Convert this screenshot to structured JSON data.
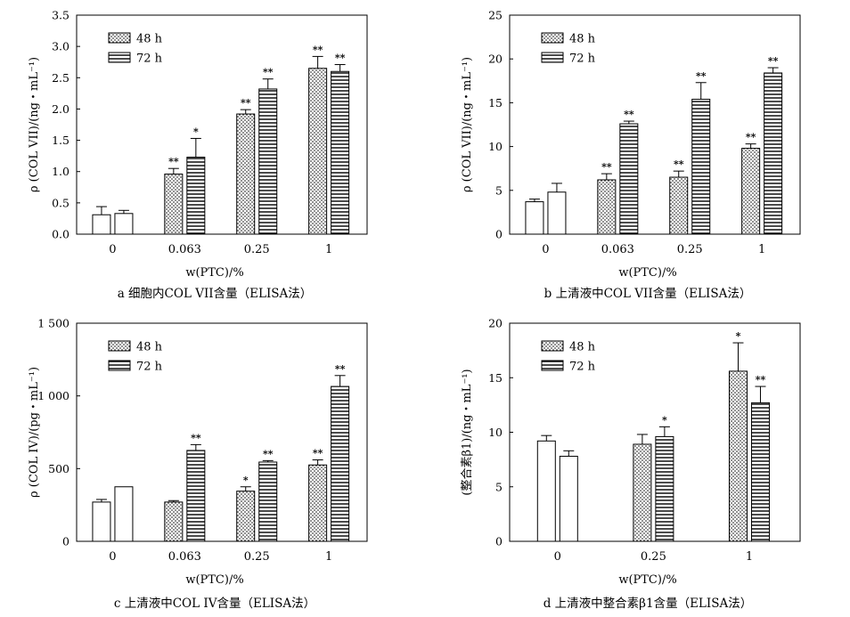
{
  "chart_data": [
    {
      "type": "bar",
      "panel": "a",
      "caption": "a 细胞内COL VII含量（ELISA法）",
      "xlabel": "w(PTC)/%",
      "ylabel": "ρ (COL VII)/(ng・mL⁻¹)",
      "ylim": [
        0,
        3.5
      ],
      "yticks": [
        "0.0",
        "0.5",
        "1.0",
        "1.5",
        "2.0",
        "2.5",
        "3.0",
        "3.5"
      ],
      "categories": [
        "0",
        "0.063",
        "0.25",
        "1"
      ],
      "series": [
        {
          "name": "48 h",
          "values": [
            0.31,
            0.96,
            1.92,
            2.65
          ],
          "errors": [
            0.13,
            0.09,
            0.07,
            0.19
          ],
          "sig": [
            "",
            "**",
            "**",
            "**"
          ]
        },
        {
          "name": "72 h",
          "values": [
            0.33,
            1.23,
            2.32,
            2.6
          ],
          "errors": [
            0.05,
            0.3,
            0.16,
            0.11
          ],
          "sig": [
            "",
            "*",
            "**",
            "**"
          ]
        }
      ],
      "legend_position": "top-left"
    },
    {
      "type": "bar",
      "panel": "b",
      "caption": "b 上清液中COL VII含量（ELISA法）",
      "xlabel": "w(PTC)/%",
      "ylabel": "ρ (COL VII)/(ng・mL⁻¹)",
      "ylim": [
        0,
        25
      ],
      "yticks": [
        "0",
        "5",
        "10",
        "15",
        "20",
        "25"
      ],
      "categories": [
        "0",
        "0.063",
        "0.25",
        "1"
      ],
      "series": [
        {
          "name": "48 h",
          "values": [
            3.7,
            6.2,
            6.5,
            9.8
          ],
          "errors": [
            0.3,
            0.7,
            0.7,
            0.5
          ],
          "sig": [
            "",
            "**",
            "**",
            "**"
          ]
        },
        {
          "name": "72 h",
          "values": [
            4.8,
            12.6,
            15.4,
            18.4
          ],
          "errors": [
            1.0,
            0.3,
            1.9,
            0.6
          ],
          "sig": [
            "",
            "**",
            "**",
            "**"
          ]
        }
      ],
      "legend_position": "top-left"
    },
    {
      "type": "bar",
      "panel": "c",
      "caption": "c 上清液中COL IV含量（ELISA法）",
      "xlabel": "w(PTC)/%",
      "ylabel": "ρ (COL IV)/(pg・mL⁻¹)",
      "ylim": [
        0,
        1500
      ],
      "yticks": [
        "0",
        "500",
        "1 000",
        "1 500"
      ],
      "categories": [
        "0",
        "0.063",
        "0.25",
        "1"
      ],
      "series": [
        {
          "name": "48 h",
          "values": [
            270,
            270,
            345,
            525
          ],
          "errors": [
            18,
            10,
            30,
            35
          ],
          "sig": [
            "",
            "",
            "*",
            "**"
          ]
        },
        {
          "name": "72 h",
          "values": [
            375,
            625,
            545,
            1065
          ],
          "errors": [
            0,
            40,
            10,
            75
          ],
          "sig": [
            "",
            "**",
            "**",
            "**"
          ]
        }
      ],
      "legend_position": "top-left"
    },
    {
      "type": "bar",
      "panel": "d",
      "caption": "d 上清液中整合素β1含量（ELISA法）",
      "xlabel": "w(PTC)/%",
      "ylabel": "(整合素β1)/(ng・mL⁻¹)",
      "ylim": [
        0,
        20
      ],
      "yticks": [
        "0",
        "5",
        "10",
        "15",
        "20"
      ],
      "categories": [
        "0",
        "0.25",
        "1"
      ],
      "series": [
        {
          "name": "48 h",
          "values": [
            9.2,
            8.9,
            15.6
          ],
          "errors": [
            0.5,
            0.9,
            2.6
          ],
          "sig": [
            "",
            "",
            "*"
          ]
        },
        {
          "name": "72 h",
          "values": [
            7.8,
            9.6,
            12.7
          ],
          "errors": [
            0.5,
            0.9,
            1.5
          ],
          "sig": [
            "",
            "*",
            "**"
          ]
        }
      ],
      "legend_position": "top-left"
    }
  ]
}
